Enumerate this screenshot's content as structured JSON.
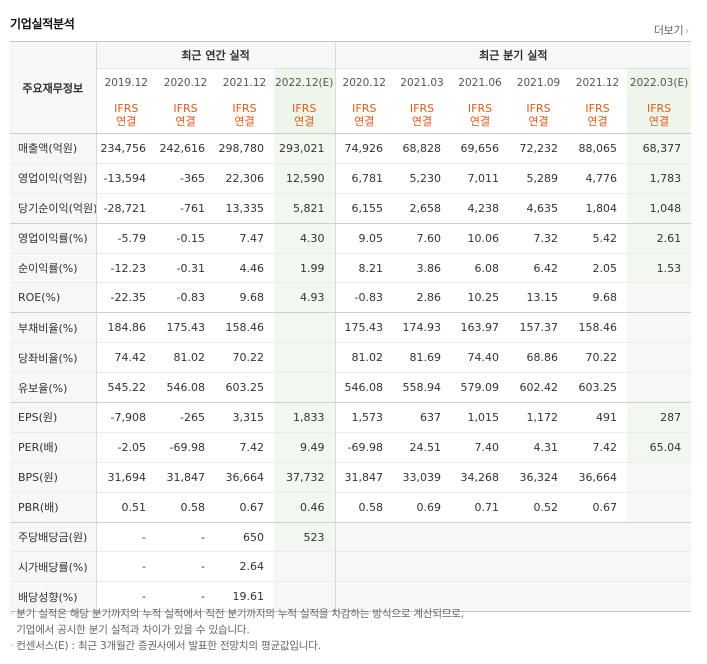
{
  "section_title": "기업실적분석",
  "more_label": "더보기",
  "header": {
    "row_label": "주요재무정보",
    "annual_group": "최근 연간 실적",
    "quarter_group": "최근 분기 실적",
    "periods": [
      "2019.12",
      "2020.12",
      "2021.12",
      "2022.12(E)",
      "2020.12",
      "2021.03",
      "2021.06",
      "2021.09",
      "2021.12",
      "2022.03(E)"
    ],
    "standard_line1": "IFRS",
    "standard_line2": "연결"
  },
  "rows": [
    {
      "label": "매출액(억원)",
      "values": [
        "234,756",
        "242,616",
        "298,780",
        "293,021",
        "74,926",
        "68,828",
        "69,656",
        "72,232",
        "88,065",
        "68,377"
      ]
    },
    {
      "label": "영업이익(억원)",
      "values": [
        "-13,594",
        "-365",
        "22,306",
        "12,590",
        "6,781",
        "5,230",
        "7,011",
        "5,289",
        "4,776",
        "1,783"
      ]
    },
    {
      "label": "당기순이익(억원)",
      "values": [
        "-28,721",
        "-761",
        "13,335",
        "5,821",
        "6,155",
        "2,658",
        "4,238",
        "4,635",
        "1,804",
        "1,048"
      ]
    },
    {
      "label": "영업이익률(%)",
      "values": [
        "-5.79",
        "-0.15",
        "7.47",
        "4.30",
        "9.05",
        "7.60",
        "10.06",
        "7.32",
        "5.42",
        "2.61"
      ]
    },
    {
      "label": "순이익률(%)",
      "values": [
        "-12.23",
        "-0.31",
        "4.46",
        "1.99",
        "8.21",
        "3.86",
        "6.08",
        "6.42",
        "2.05",
        "1.53"
      ]
    },
    {
      "label": "ROE(%)",
      "values": [
        "-22.35",
        "-0.83",
        "9.68",
        "4.93",
        "-0.83",
        "2.86",
        "10.25",
        "13.15",
        "9.68",
        ""
      ]
    },
    {
      "label": "부채비율(%)",
      "values": [
        "184.86",
        "175.43",
        "158.46",
        "",
        "175.43",
        "174.93",
        "163.97",
        "157.37",
        "158.46",
        ""
      ]
    },
    {
      "label": "당좌비율(%)",
      "values": [
        "74.42",
        "81.02",
        "70.22",
        "",
        "81.02",
        "81.69",
        "74.40",
        "68.86",
        "70.22",
        ""
      ]
    },
    {
      "label": "유보율(%)",
      "values": [
        "545.22",
        "546.08",
        "603.25",
        "",
        "546.08",
        "558.94",
        "579.09",
        "602.42",
        "603.25",
        ""
      ]
    },
    {
      "label": "EPS(원)",
      "values": [
        "-7,908",
        "-265",
        "3,315",
        "1,833",
        "1,573",
        "637",
        "1,015",
        "1,172",
        "491",
        "287"
      ]
    },
    {
      "label": "PER(배)",
      "values": [
        "-2.05",
        "-69.98",
        "7.42",
        "9.49",
        "-69.98",
        "24.51",
        "7.40",
        "4.31",
        "7.42",
        "65.04"
      ]
    },
    {
      "label": "BPS(원)",
      "values": [
        "31,694",
        "31,847",
        "36,664",
        "37,732",
        "31,847",
        "33,039",
        "34,268",
        "36,324",
        "36,664",
        ""
      ]
    },
    {
      "label": "PBR(배)",
      "values": [
        "0.51",
        "0.58",
        "0.67",
        "0.46",
        "0.58",
        "0.69",
        "0.71",
        "0.52",
        "0.67",
        ""
      ]
    },
    {
      "label": "주당배당금(원)",
      "values": [
        "-",
        "-",
        "650",
        "523",
        "",
        "",
        "",
        "",
        "",
        ""
      ]
    },
    {
      "label": "시가배당률(%)",
      "values": [
        "-",
        "-",
        "2.64",
        "",
        "",
        "",
        "",
        "",
        "",
        ""
      ]
    },
    {
      "label": "배당성향(%)",
      "values": [
        "-",
        "-",
        "19.61",
        "",
        "",
        "",
        "",
        "",
        "",
        ""
      ]
    }
  ],
  "notes": [
    "분기 실적은 해당 분기까지의 누적 실적에서 직전 분기까지의 누적 실적을 차감하는 방식으로 계산되므로,",
    "기업에서 공시한 분기 실적과 차이가 있을 수 있습니다.",
    "컨센서스(E) : 최근 3개월간 증권사에서 발표한 전망치의 평균값입니다."
  ]
}
